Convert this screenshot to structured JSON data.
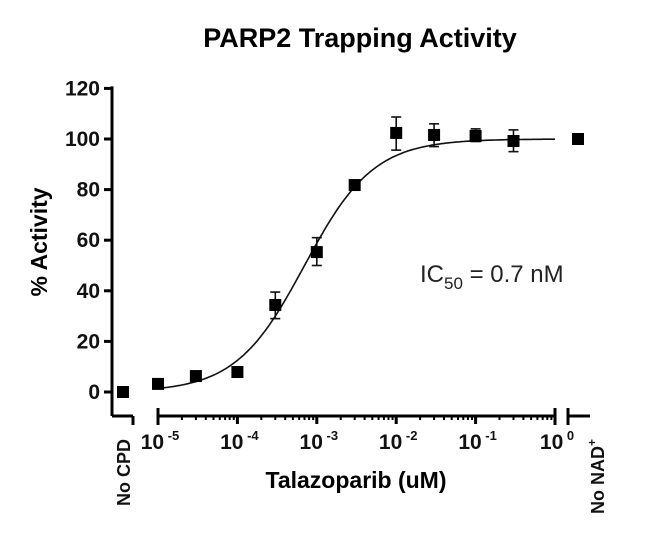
{
  "chart_data": {
    "type": "scatter",
    "title": "PARP2 Trapping Activity",
    "xlabel": "Talazoparib (uM)",
    "ylabel": "% Activity",
    "xscale": "log",
    "xlim": [
      1e-05,
      1
    ],
    "ylim": [
      -10,
      120
    ],
    "yticks": [
      0,
      20,
      40,
      60,
      80,
      100,
      120
    ],
    "ytick_labels": [
      "0",
      "20",
      "40",
      "60",
      "80",
      "100",
      "120"
    ],
    "xticks": [
      {
        "base": "10",
        "exp": "-5"
      },
      {
        "base": "10",
        "exp": "-4"
      },
      {
        "base": "10",
        "exp": "-3"
      },
      {
        "base": "10",
        "exp": "-2"
      },
      {
        "base": "10",
        "exp": "-1"
      },
      {
        "base": "10",
        "exp": "0"
      }
    ],
    "control_labels": {
      "left": "No CPD",
      "right_base": "No NAD",
      "right_sup": "+"
    },
    "controls": {
      "no_cpd": 0,
      "no_nad": 100
    },
    "points": [
      {
        "x": 1e-05,
        "y": 3.2
      },
      {
        "x": 3e-05,
        "y": 6.3
      },
      {
        "x": 0.0001,
        "y": 7.9
      },
      {
        "x": 0.0003,
        "y": 34.4,
        "err_lo": 29,
        "err_hi": 39.5
      },
      {
        "x": 0.001,
        "y": 55.3,
        "err_lo": 50,
        "err_hi": 61
      },
      {
        "x": 0.003,
        "y": 81.8
      },
      {
        "x": 0.01,
        "y": 102.4,
        "err_lo": 95.6,
        "err_hi": 108.7
      },
      {
        "x": 0.03,
        "y": 101.6,
        "err_lo": 97,
        "err_hi": 106
      },
      {
        "x": 0.1,
        "y": 101.2,
        "err_lo": 99,
        "err_hi": 104
      },
      {
        "x": 0.3,
        "y": 99.2,
        "err_lo": 95,
        "err_hi": 103.6
      }
    ],
    "fit": {
      "model": "4PL",
      "bottom": 0,
      "top": 100,
      "ic50_uM": 0.0007,
      "hill": 1
    },
    "annotation": {
      "prefix": "IC",
      "sub": "50",
      "suffix": " = 0.7 nM"
    },
    "grid": false
  }
}
